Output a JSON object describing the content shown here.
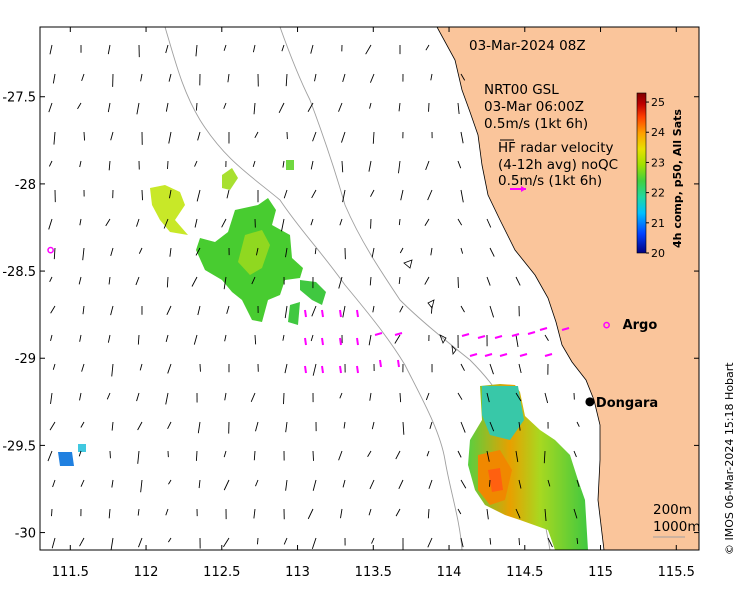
{
  "map": {
    "timestamp": "03-Mar-2024 08Z",
    "gsl_title": "NRT00 GSL",
    "gsl_time": "03-Mar 06:00Z",
    "gsl_scale": "0.5m/s (1kt 6h)",
    "hf_title": "HF radar velocity",
    "hf_avg": "(4-12h avg) noQC",
    "hf_scale": "0.5m/s (1kt 6h)",
    "credit": "© IMOS 06-Mar-2024 15:18 Hobart",
    "contour_200": "200m",
    "contour_1000": "1000m",
    "x_ticks": [
      "111.5",
      "112",
      "112.5",
      "113",
      "113.5",
      "114",
      "114.5",
      "115",
      "115.5"
    ],
    "y_ticks": [
      "-27.5",
      "-28",
      "-28.5",
      "-29",
      "-29.5",
      "-30"
    ],
    "x_tick_values": [
      111.5,
      112,
      112.5,
      113,
      113.5,
      114,
      114.5,
      115,
      115.5
    ],
    "y_tick_values": [
      -27.5,
      -28,
      -28.5,
      -29,
      -29.5,
      -30
    ],
    "lon_range": [
      111.3,
      115.65
    ],
    "lat_range": [
      -30.1,
      -27.1
    ],
    "places": [
      {
        "name": "Dongara",
        "lon": 114.93,
        "lat": -29.25,
        "marker": "dot"
      },
      {
        "name": "Argo",
        "lon": 115.04,
        "lat": -28.81,
        "marker": "ring"
      }
    ],
    "extra_argo": [
      {
        "lon": 111.37,
        "lat": -28.38
      }
    ],
    "colors": {
      "land": "#fac59b",
      "hf_vector": "#ff00ff",
      "gsl_vector": "#000000",
      "contour": "#a0a0a0",
      "argo": "#ff00ff"
    },
    "colorbar": {
      "label": "4h comp, p50, All Sats",
      "min": 20,
      "max": 25.3,
      "ticks": [
        "20",
        "21",
        "22",
        "23",
        "24",
        "25"
      ],
      "tick_values": [
        20,
        21,
        22,
        23,
        24,
        25
      ],
      "colors": [
        "#00007f",
        "#0040ff",
        "#00c0ff",
        "#20d8a0",
        "#40d040",
        "#a0e000",
        "#e8e000",
        "#ffa000",
        "#ff4000",
        "#c00000",
        "#800000"
      ]
    }
  }
}
